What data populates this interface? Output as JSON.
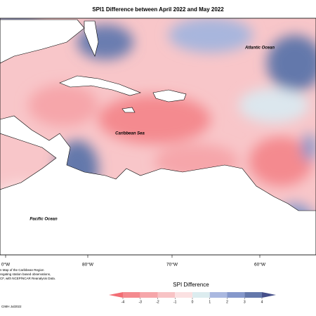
{
  "header": {
    "title": "SPI1 Difference between April 2022 and May 2022"
  },
  "map": {
    "labels": [
      "Atlantic Ocean",
      "Caribbean Sea",
      "Pacific Ocean"
    ],
    "longitudes": [
      "0°W",
      "80°W",
      "70°W",
      "60°W"
    ]
  },
  "footnote": {
    "lines": [
      "n Map of the Caribbean Region",
      "regating station based observations,",
      "CF, with NCEP/NCAR Reanalysis Data.",
      "CIMH Jul2022"
    ]
  },
  "legend": {
    "title": "SPI Difference",
    "ticks": [
      -4,
      -3,
      -2,
      -1,
      0,
      1,
      2,
      3,
      4
    ],
    "colors": [
      "#f26d74",
      "#f48a8f",
      "#f6a6aa",
      "#f8c3c5",
      "#fbe1e2",
      "#dcecef",
      "#aab8e0",
      "#8598cb",
      "#6478ab",
      "#46508a"
    ]
  }
}
